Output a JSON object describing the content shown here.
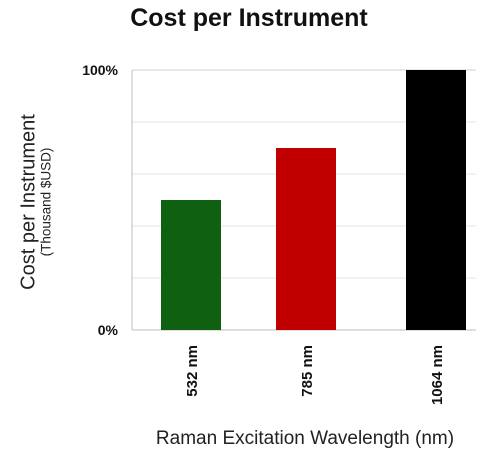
{
  "chart_data": {
    "type": "bar",
    "title": "Cost per Instrument",
    "ylabel": "Cost per Instrument",
    "ylabel_sub": "(Thousand $USD)",
    "xlabel": "Raman Excitation Wavelength (nm)",
    "categories": [
      "532 nm",
      "785 nm",
      "1064 nm"
    ],
    "values": [
      50,
      70,
      100
    ],
    "ylim": [
      0,
      100
    ],
    "yticks": [
      {
        "value": 0,
        "label": "0%"
      },
      {
        "value": 100,
        "label": "100%"
      }
    ],
    "colors": [
      "#0f6010",
      "#c00000",
      "#000000"
    ],
    "grid": true,
    "legend": "none"
  }
}
